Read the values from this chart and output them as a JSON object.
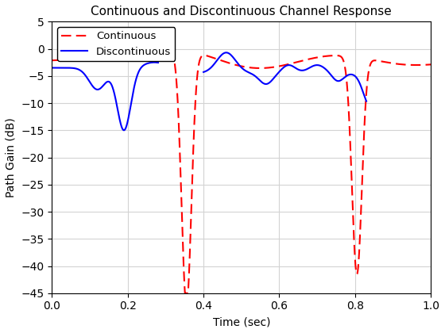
{
  "title": "Continuous and Discontinuous Channel Response",
  "xlabel": "Time (sec)",
  "ylabel": "Path Gain (dB)",
  "xlim": [
    0,
    1
  ],
  "ylim": [
    -45,
    5
  ],
  "yticks": [
    5,
    0,
    -5,
    -10,
    -15,
    -20,
    -25,
    -30,
    -35,
    -40,
    -45
  ],
  "xticks": [
    0,
    0.2,
    0.4,
    0.6,
    0.8,
    1.0
  ],
  "continuous_color": "#FF0000",
  "discontinuous_color": "#0000FF",
  "background_color": "#FFFFFF",
  "figsize": [
    5.6,
    4.2
  ],
  "dpi": 100,
  "title_fontsize": 11,
  "label_fontsize": 10,
  "tick_fontsize": 10,
  "legend_fontsize": 9.5
}
